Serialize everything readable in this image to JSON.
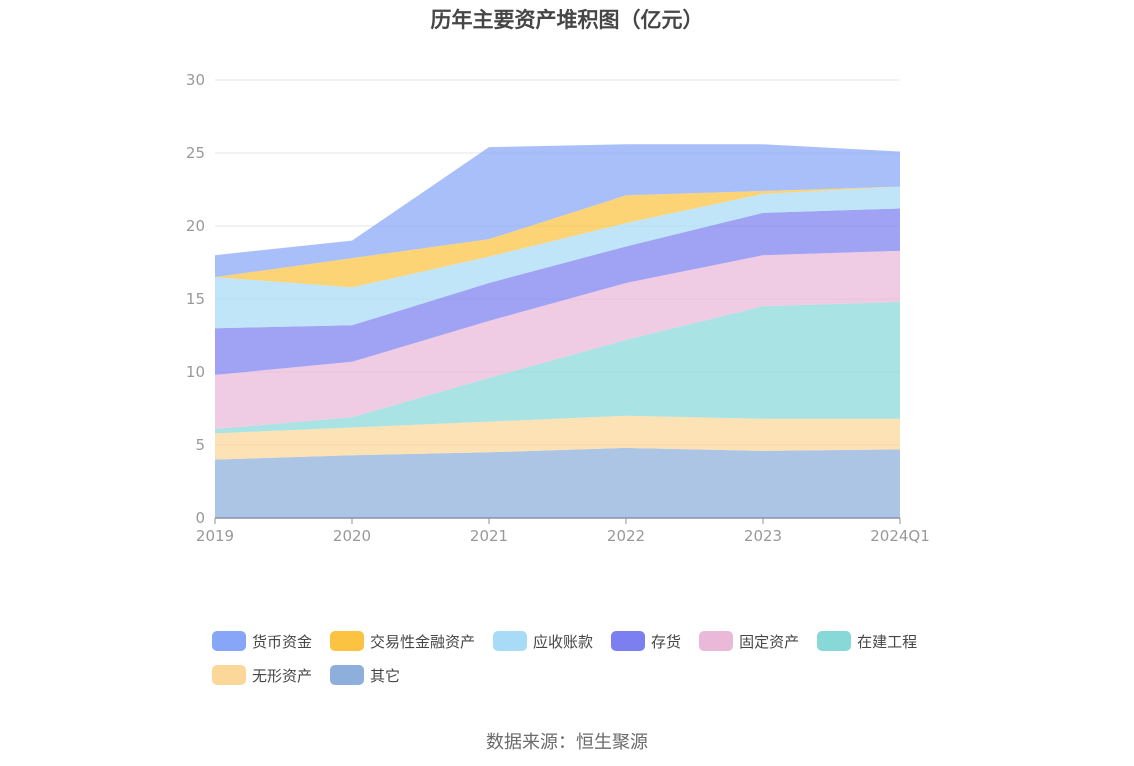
{
  "chart_data": {
    "type": "area",
    "stacked": true,
    "title": "历年主要资产堆积图（亿元）",
    "categories": [
      "2019",
      "2020",
      "2021",
      "2022",
      "2023",
      "2024Q1"
    ],
    "ylim": [
      0,
      30
    ],
    "yticks": [
      "0",
      "5",
      "10",
      "15",
      "20",
      "25",
      "30"
    ],
    "grid": true,
    "legend_position": "bottom",
    "series": [
      {
        "name": "其它",
        "color": "#8eaedb",
        "values": [
          4.0,
          4.3,
          4.5,
          4.8,
          4.6,
          4.7
        ]
      },
      {
        "name": "无形资产",
        "color": "#fcd79a",
        "values": [
          1.8,
          1.9,
          2.1,
          2.2,
          2.2,
          2.1
        ]
      },
      {
        "name": "在建工程",
        "color": "#89d8d8",
        "values": [
          0.3,
          0.7,
          3.0,
          5.2,
          7.7,
          8.0
        ]
      },
      {
        "name": "固定资产",
        "color": "#eab9d9",
        "values": [
          3.7,
          3.8,
          3.9,
          3.9,
          3.5,
          3.5
        ]
      },
      {
        "name": "存货",
        "color": "#7b7ff0",
        "values": [
          3.2,
          2.5,
          2.6,
          2.5,
          2.9,
          2.9
        ]
      },
      {
        "name": "应收账款",
        "color": "#a7dbf6",
        "values": [
          3.5,
          2.6,
          1.8,
          1.6,
          1.3,
          1.5
        ]
      },
      {
        "name": "交易性金融资产",
        "color": "#fbc341",
        "values": [
          0.0,
          2.0,
          1.2,
          1.9,
          0.2,
          0.0
        ]
      },
      {
        "name": "货币资金",
        "color": "#88a6f8",
        "values": [
          1.5,
          1.2,
          6.3,
          3.5,
          3.2,
          2.4
        ]
      }
    ],
    "legend_order": [
      "货币资金",
      "交易性金融资产",
      "应收账款",
      "存货",
      "固定资产",
      "在建工程",
      "无形资产",
      "其它"
    ]
  },
  "source": "数据来源：恒生聚源"
}
